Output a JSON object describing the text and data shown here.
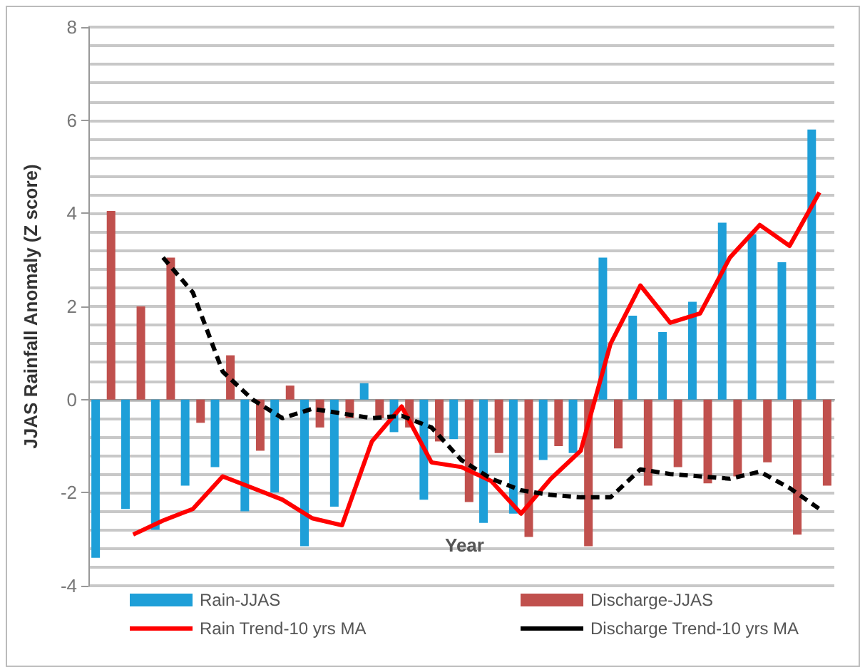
{
  "chart_data": {
    "type": "bar",
    "ylabel": "JJAS Rainfall Anomaly (Z score)",
    "xlabel": "Year",
    "categories": [
      null,
      null,
      null,
      null,
      null,
      null,
      null,
      null,
      null,
      null,
      null,
      null,
      null,
      null,
      null,
      null,
      null,
      null,
      null,
      null,
      null,
      null,
      null,
      null,
      null
    ],
    "ylim": [
      -4,
      8
    ],
    "yticks": [
      -4,
      -2,
      0,
      2,
      4,
      6,
      8
    ],
    "grid": "y",
    "legend": "bottom",
    "series": [
      {
        "name": "Rain-JJAS",
        "color": "#1e9fd8",
        "values": [
          -3.4,
          -2.35,
          -2.8,
          -1.85,
          -1.45,
          -2.4,
          -2.0,
          -3.15,
          -2.3,
          0.35,
          -0.7,
          -2.15,
          -0.85,
          -2.65,
          -2.45,
          -1.3,
          -1.15,
          3.05,
          1.8,
          1.45,
          2.1,
          3.8,
          3.55,
          2.95,
          5.8
        ]
      },
      {
        "name": "Discharge-JJAS",
        "color": "#c0504d",
        "values": [
          4.05,
          2.0,
          3.05,
          -0.5,
          0.95,
          -1.1,
          0.3,
          -0.6,
          -0.4,
          -0.4,
          -0.6,
          -0.9,
          -2.2,
          -1.15,
          -2.95,
          -1.0,
          -3.15,
          -1.05,
          -1.85,
          -1.45,
          -1.8,
          -1.65,
          -1.35,
          -2.9,
          -1.85
        ]
      },
      {
        "name": "Rain Trend-10 yrs MA",
        "type": "line",
        "color": "#ff0000",
        "line_style": "solid",
        "values": [
          null,
          -2.9,
          -2.6,
          -2.35,
          -1.65,
          -1.9,
          -2.15,
          -2.55,
          -2.7,
          -0.9,
          -0.15,
          -1.35,
          -1.45,
          -1.75,
          -2.45,
          -1.7,
          -1.1,
          1.2,
          2.45,
          1.65,
          1.85,
          3.05,
          3.75,
          3.3,
          4.45
        ]
      },
      {
        "name": "Discharge Trend-10 yrs MA",
        "type": "line",
        "color": "#000000",
        "line_style": "dashed",
        "values": [
          null,
          null,
          3.05,
          2.3,
          0.6,
          0.0,
          -0.4,
          -0.2,
          -0.3,
          -0.4,
          -0.35,
          -0.6,
          -1.3,
          -1.7,
          -1.95,
          -2.05,
          -2.1,
          -2.1,
          -1.5,
          -1.6,
          -1.65,
          -1.7,
          -1.55,
          -1.9,
          -2.35
        ]
      }
    ]
  }
}
